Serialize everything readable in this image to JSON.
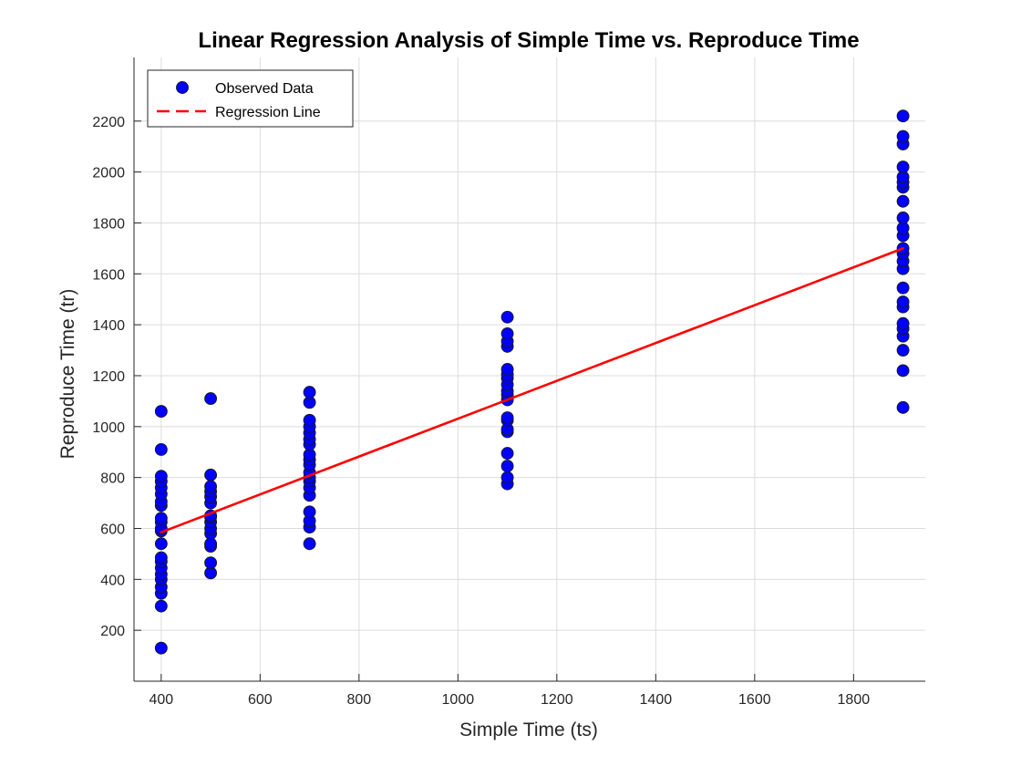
{
  "chart_data": {
    "type": "scatter",
    "title": "Linear Regression Analysis of Simple Time vs. Reproduce Time",
    "xlabel": "Simple Time (ts)",
    "ylabel": "Reproduce Time (tr)",
    "xlim": [
      345,
      1945
    ],
    "ylim": [
      0,
      2450
    ],
    "xticks": [
      400,
      600,
      800,
      1000,
      1200,
      1400,
      1600,
      1800
    ],
    "yticks": [
      200,
      400,
      600,
      800,
      1000,
      1200,
      1400,
      1600,
      1800,
      2000,
      2200
    ],
    "grid": true,
    "legend_location": "top-left",
    "series": [
      {
        "name": "Observed Data",
        "kind": "markers",
        "color": "#0000ff",
        "points": [
          [
            400,
            130
          ],
          [
            400,
            295
          ],
          [
            400,
            345
          ],
          [
            400,
            370
          ],
          [
            400,
            400
          ],
          [
            400,
            420
          ],
          [
            400,
            445
          ],
          [
            400,
            470
          ],
          [
            400,
            485
          ],
          [
            400,
            540
          ],
          [
            400,
            590
          ],
          [
            400,
            600
          ],
          [
            400,
            625
          ],
          [
            400,
            640
          ],
          [
            400,
            690
          ],
          [
            400,
            705
          ],
          [
            400,
            735
          ],
          [
            400,
            760
          ],
          [
            400,
            785
          ],
          [
            400,
            805
          ],
          [
            400,
            910
          ],
          [
            400,
            1060
          ],
          [
            500,
            425
          ],
          [
            500,
            465
          ],
          [
            500,
            530
          ],
          [
            500,
            540
          ],
          [
            500,
            580
          ],
          [
            500,
            600
          ],
          [
            500,
            625
          ],
          [
            500,
            645
          ],
          [
            500,
            650
          ],
          [
            500,
            700
          ],
          [
            500,
            725
          ],
          [
            500,
            745
          ],
          [
            500,
            765
          ],
          [
            500,
            810
          ],
          [
            500,
            1110
          ],
          [
            700,
            540
          ],
          [
            700,
            605
          ],
          [
            700,
            630
          ],
          [
            700,
            665
          ],
          [
            700,
            730
          ],
          [
            700,
            760
          ],
          [
            700,
            785
          ],
          [
            700,
            800
          ],
          [
            700,
            820
          ],
          [
            700,
            850
          ],
          [
            700,
            870
          ],
          [
            700,
            890
          ],
          [
            700,
            930
          ],
          [
            700,
            950
          ],
          [
            700,
            975
          ],
          [
            700,
            1000
          ],
          [
            700,
            1025
          ],
          [
            700,
            1095
          ],
          [
            700,
            1135
          ],
          [
            1100,
            775
          ],
          [
            1100,
            800
          ],
          [
            1100,
            845
          ],
          [
            1100,
            895
          ],
          [
            1100,
            980
          ],
          [
            1100,
            990
          ],
          [
            1100,
            1025
          ],
          [
            1100,
            1035
          ],
          [
            1100,
            1105
          ],
          [
            1100,
            1125
          ],
          [
            1100,
            1140
          ],
          [
            1100,
            1165
          ],
          [
            1100,
            1190
          ],
          [
            1100,
            1205
          ],
          [
            1100,
            1225
          ],
          [
            1100,
            1315
          ],
          [
            1100,
            1335
          ],
          [
            1100,
            1365
          ],
          [
            1100,
            1430
          ],
          [
            1900,
            1075
          ],
          [
            1900,
            1220
          ],
          [
            1900,
            1300
          ],
          [
            1900,
            1355
          ],
          [
            1900,
            1385
          ],
          [
            1900,
            1405
          ],
          [
            1900,
            1470
          ],
          [
            1900,
            1490
          ],
          [
            1900,
            1545
          ],
          [
            1900,
            1620
          ],
          [
            1900,
            1650
          ],
          [
            1900,
            1680
          ],
          [
            1900,
            1700
          ],
          [
            1900,
            1750
          ],
          [
            1900,
            1780
          ],
          [
            1900,
            1820
          ],
          [
            1900,
            1885
          ],
          [
            1900,
            1940
          ],
          [
            1900,
            1960
          ],
          [
            1900,
            1980
          ],
          [
            1900,
            2020
          ],
          [
            1900,
            2110
          ],
          [
            1900,
            2140
          ],
          [
            1900,
            2220
          ]
        ]
      },
      {
        "name": "Regression Line",
        "kind": "line",
        "color": "#ff0000",
        "line_style": "dashed",
        "points": [
          [
            400,
            585
          ],
          [
            1900,
            1700
          ]
        ]
      }
    ]
  }
}
